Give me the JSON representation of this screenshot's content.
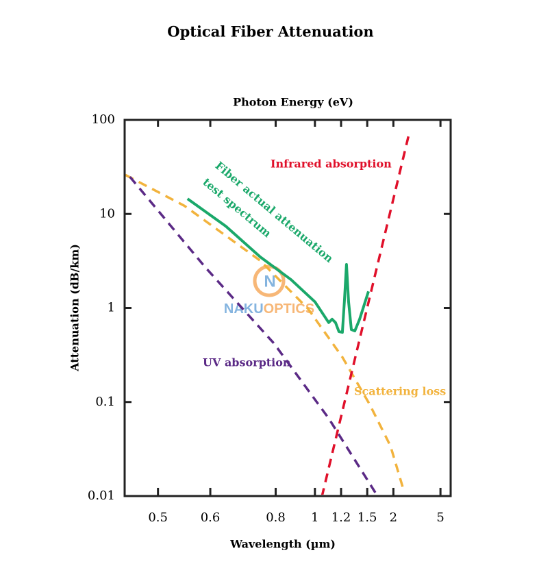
{
  "chart_data": {
    "type": "line",
    "title": "Optical Fiber Attenuation",
    "top_axis_label": "Photon Energy (eV)",
    "xlabel": "Wavelength (µm)",
    "ylabel": "Attenuation (dB/km)",
    "xscale": "reciprocal",
    "yscale": "log",
    "xlim": [
      0.452,
      7.4
    ],
    "ylim": [
      0.01,
      100
    ],
    "xticks": [
      0.5,
      0.6,
      0.8,
      1,
      1.2,
      1.5,
      2,
      5
    ],
    "yticks": [
      0.01,
      0.1,
      1,
      10,
      100
    ],
    "watermark": [
      "N",
      "NAKU",
      "OPTICS"
    ],
    "series": [
      {
        "name": "Scattering loss",
        "color": "#f2b33d",
        "style": "dashed",
        "x": [
          0.453,
          0.546,
          0.741,
          0.958,
          1.212,
          1.54,
          1.93,
          2.32
        ],
        "values": [
          26,
          12.2,
          3.2,
          0.98,
          0.3,
          0.093,
          0.034,
          0.011
        ]
      },
      {
        "name": "UV absorption",
        "color": "#5b2a86",
        "style": "dashed",
        "x": [
          0.459,
          0.589,
          0.793,
          1.096,
          1.625
        ],
        "values": [
          24.8,
          2.7,
          0.42,
          0.067,
          0.0109
        ]
      },
      {
        "name": "Infrared absorption",
        "color": "#e0102a",
        "style": "dashed",
        "x": [
          1.046,
          1.478,
          2.52
        ],
        "values": [
          0.0098,
          0.86,
          75
        ]
      },
      {
        "name": [
          "Fiber actual attenuation",
          "test spectrum"
        ],
        "color": "#1aa86a",
        "style": "solid",
        "x": [
          0.552,
          0.638,
          0.741,
          0.868,
          1.001,
          1.096,
          1.123,
          1.151,
          1.181,
          1.212,
          1.231,
          1.252,
          1.273,
          1.302,
          1.341,
          1.398,
          1.518
        ],
        "values": [
          14.5,
          7.4,
          3.5,
          2.0,
          1.16,
          0.7,
          0.76,
          0.7,
          0.56,
          0.55,
          1.16,
          2.9,
          1.16,
          0.59,
          0.57,
          0.76,
          1.5
        ]
      }
    ]
  }
}
